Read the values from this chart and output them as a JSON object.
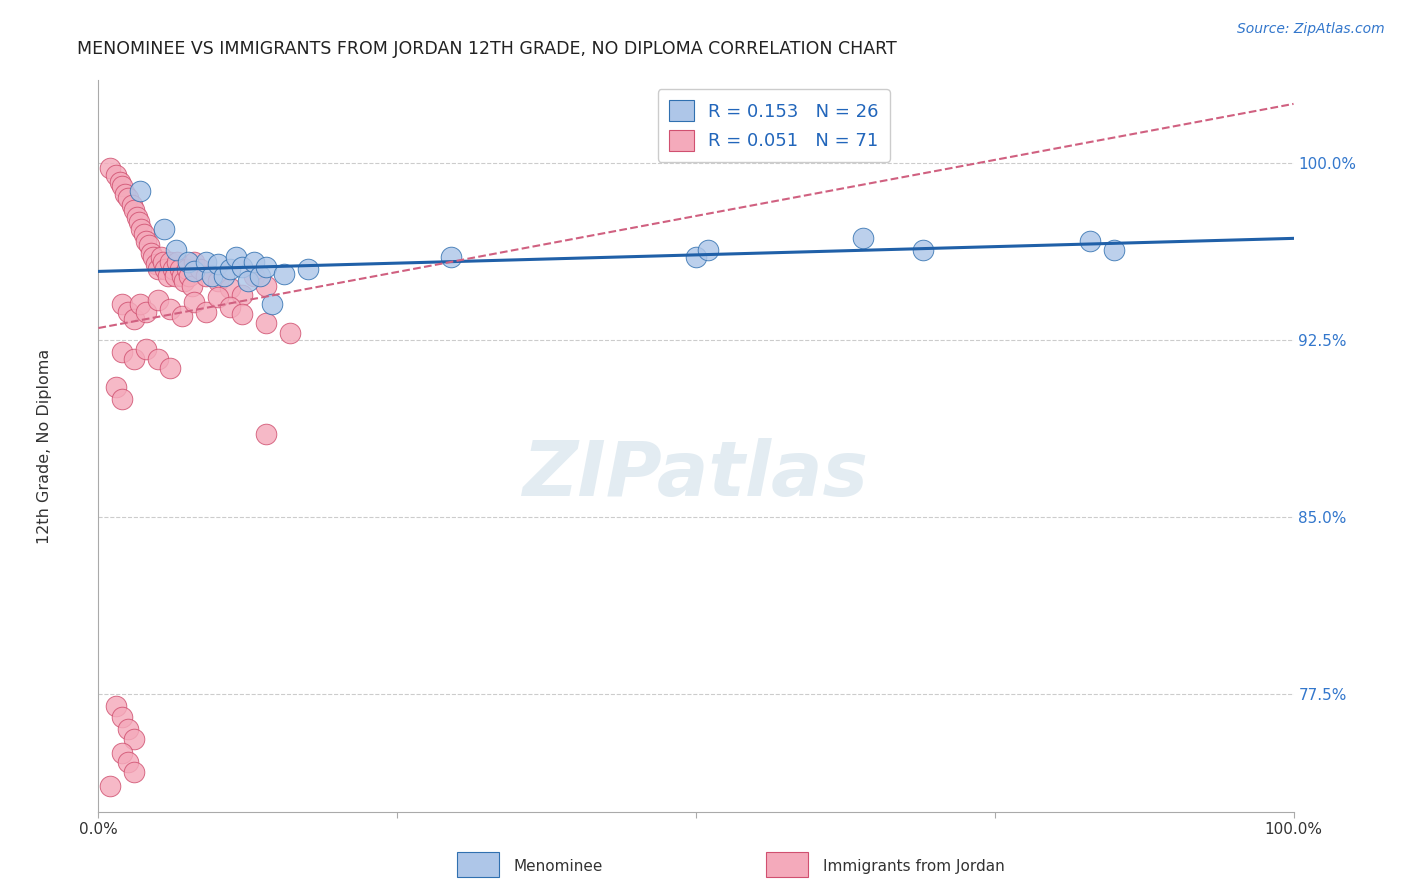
{
  "title": "MENOMINEE VS IMMIGRANTS FROM JORDAN 12TH GRADE, NO DIPLOMA CORRELATION CHART",
  "source": "Source: ZipAtlas.com",
  "ylabel": "12th Grade, No Diploma",
  "ytick_labels": [
    "77.5%",
    "85.0%",
    "92.5%",
    "100.0%"
  ],
  "ytick_values": [
    0.775,
    0.85,
    0.925,
    1.0
  ],
  "xmin": 0.0,
  "xmax": 1.0,
  "ymin": 0.725,
  "ymax": 1.035,
  "blue_R": 0.153,
  "blue_N": 26,
  "pink_R": 0.051,
  "pink_N": 71,
  "blue_fill": "#aec6e8",
  "pink_fill": "#f4aabb",
  "blue_edge": "#3070b0",
  "pink_edge": "#d05070",
  "blue_line": "#2060a8",
  "pink_line": "#d06080",
  "blue_points": [
    [
      0.035,
      0.988
    ],
    [
      0.055,
      0.972
    ],
    [
      0.065,
      0.963
    ],
    [
      0.075,
      0.958
    ],
    [
      0.08,
      0.954
    ],
    [
      0.09,
      0.958
    ],
    [
      0.095,
      0.952
    ],
    [
      0.1,
      0.957
    ],
    [
      0.105,
      0.952
    ],
    [
      0.11,
      0.955
    ],
    [
      0.115,
      0.96
    ],
    [
      0.12,
      0.956
    ],
    [
      0.125,
      0.95
    ],
    [
      0.13,
      0.958
    ],
    [
      0.135,
      0.952
    ],
    [
      0.14,
      0.956
    ],
    [
      0.145,
      0.94
    ],
    [
      0.155,
      0.953
    ],
    [
      0.175,
      0.955
    ],
    [
      0.295,
      0.96
    ],
    [
      0.5,
      0.96
    ],
    [
      0.51,
      0.963
    ],
    [
      0.64,
      0.968
    ],
    [
      0.69,
      0.963
    ],
    [
      0.83,
      0.967
    ],
    [
      0.85,
      0.963
    ]
  ],
  "pink_points": [
    [
      0.01,
      0.998
    ],
    [
      0.015,
      0.995
    ],
    [
      0.018,
      0.992
    ],
    [
      0.02,
      0.99
    ],
    [
      0.022,
      0.987
    ],
    [
      0.025,
      0.985
    ],
    [
      0.028,
      0.982
    ],
    [
      0.03,
      0.98
    ],
    [
      0.032,
      0.977
    ],
    [
      0.034,
      0.975
    ],
    [
      0.036,
      0.972
    ],
    [
      0.038,
      0.97
    ],
    [
      0.04,
      0.967
    ],
    [
      0.042,
      0.965
    ],
    [
      0.044,
      0.962
    ],
    [
      0.046,
      0.96
    ],
    [
      0.048,
      0.957
    ],
    [
      0.05,
      0.955
    ],
    [
      0.052,
      0.96
    ],
    [
      0.054,
      0.958
    ],
    [
      0.056,
      0.955
    ],
    [
      0.058,
      0.952
    ],
    [
      0.06,
      0.958
    ],
    [
      0.062,
      0.955
    ],
    [
      0.064,
      0.952
    ],
    [
      0.066,
      0.958
    ],
    [
      0.068,
      0.955
    ],
    [
      0.07,
      0.952
    ],
    [
      0.072,
      0.95
    ],
    [
      0.074,
      0.955
    ],
    [
      0.076,
      0.952
    ],
    [
      0.078,
      0.948
    ],
    [
      0.08,
      0.958
    ],
    [
      0.085,
      0.955
    ],
    [
      0.09,
      0.952
    ],
    [
      0.1,
      0.95
    ],
    [
      0.11,
      0.947
    ],
    [
      0.12,
      0.944
    ],
    [
      0.13,
      0.952
    ],
    [
      0.14,
      0.948
    ],
    [
      0.02,
      0.94
    ],
    [
      0.025,
      0.937
    ],
    [
      0.03,
      0.934
    ],
    [
      0.035,
      0.94
    ],
    [
      0.04,
      0.937
    ],
    [
      0.05,
      0.942
    ],
    [
      0.06,
      0.938
    ],
    [
      0.07,
      0.935
    ],
    [
      0.08,
      0.941
    ],
    [
      0.09,
      0.937
    ],
    [
      0.1,
      0.943
    ],
    [
      0.11,
      0.939
    ],
    [
      0.12,
      0.936
    ],
    [
      0.14,
      0.932
    ],
    [
      0.16,
      0.928
    ],
    [
      0.02,
      0.92
    ],
    [
      0.03,
      0.917
    ],
    [
      0.04,
      0.921
    ],
    [
      0.05,
      0.917
    ],
    [
      0.06,
      0.913
    ],
    [
      0.015,
      0.905
    ],
    [
      0.02,
      0.9
    ],
    [
      0.14,
      0.885
    ],
    [
      0.015,
      0.77
    ],
    [
      0.02,
      0.765
    ],
    [
      0.025,
      0.76
    ],
    [
      0.03,
      0.756
    ],
    [
      0.02,
      0.75
    ],
    [
      0.025,
      0.746
    ],
    [
      0.03,
      0.742
    ],
    [
      0.01,
      0.736
    ]
  ]
}
